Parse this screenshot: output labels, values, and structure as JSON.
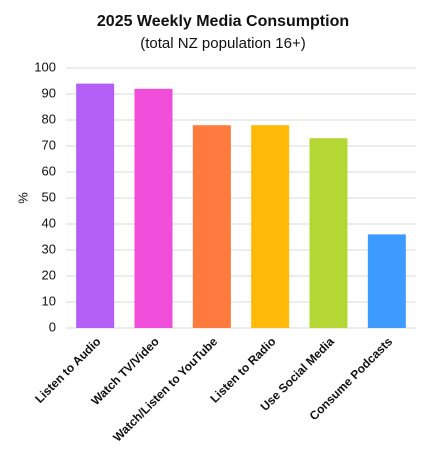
{
  "chart_data": {
    "type": "bar",
    "title": "2025 Weekly Media Consumption",
    "subtitle": "(total NZ population 16+)",
    "y_label": "%",
    "categories": [
      "Listen to Audio",
      "Watch TV/Video",
      "Watch/Listen to YouTube",
      "Listen to Radio",
      "Use Social Media",
      "Consume Podcasts"
    ],
    "values": [
      94,
      92,
      78,
      78,
      73,
      36
    ],
    "colors": [
      "#b35ef7",
      "#f04ddb",
      "#ff7b3d",
      "#ffb908",
      "#b5d735",
      "#3d9bff"
    ],
    "ylim": [
      0,
      100
    ],
    "yticks": [
      0,
      10,
      20,
      30,
      40,
      50,
      60,
      70,
      80,
      90,
      100
    ],
    "grid": true
  }
}
